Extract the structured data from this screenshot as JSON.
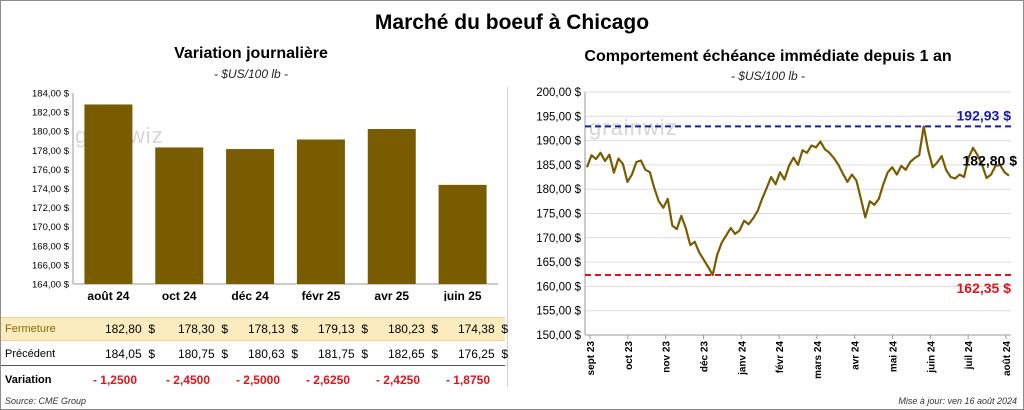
{
  "title": "Marché du boeuf à Chicago",
  "source": "Source: CME Group",
  "updated": "Mise à jour: ven 16 août 2024",
  "watermark": "grainwiz",
  "colors": {
    "bar": "#7a5c00",
    "line": "#7a5c00",
    "high_line": "#1a1aaa",
    "low_line": "#e0141e",
    "close_row_bg": "#fbecc0",
    "negative": "#e0141e"
  },
  "table": {
    "rows": [
      {
        "label": "Fermeture",
        "values": [
          "182,80  $",
          "178,30  $",
          "178,13  $",
          "179,13  $",
          "180,23  $",
          "174,38  $"
        ]
      },
      {
        "label": "Précédent",
        "values": [
          "184,05  $",
          "180,75  $",
          "180,63  $",
          "181,75  $",
          "182,65  $",
          "176,25  $"
        ]
      },
      {
        "label": "Variation",
        "values": [
          "- 1,2500",
          "- 2,4500",
          "- 2,5000",
          "- 2,6250",
          "- 2,4250",
          "- 1,8750"
        ]
      }
    ]
  },
  "chart_data": [
    {
      "type": "bar",
      "title": "Variation  journalière",
      "subtitle": "- $US/100 lb -",
      "categories": [
        "août 24",
        "oct 24",
        "déc 24",
        "févr 25",
        "avr 25",
        "juin 25"
      ],
      "values": [
        182.8,
        178.3,
        178.13,
        179.13,
        180.23,
        174.38
      ],
      "ylim": [
        164,
        184
      ],
      "yticks": [
        "164,00 $",
        "166,00 $",
        "168,00 $",
        "170,00 $",
        "172,00 $",
        "174,00 $",
        "176,00 $",
        "178,00 $",
        "180,00 $",
        "182,00 $",
        "184,00 $"
      ],
      "grid": false,
      "legend": "none"
    },
    {
      "type": "line",
      "title": "Comportement  échéance immédiate depuis 1 an",
      "subtitle": "- $US/100 lb -",
      "ylim": [
        150,
        200
      ],
      "yticks": [
        "150,00 $",
        "155,00 $",
        "160,00 $",
        "165,00 $",
        "170,00 $",
        "175,00 $",
        "180,00 $",
        "185,00 $",
        "190,00 $",
        "195,00 $",
        "200,00 $"
      ],
      "xtick_labels": [
        "sept 23",
        "oct 23",
        "nov 23",
        "déc 23",
        "janv 24",
        "févr 24",
        "mars 24",
        "avr 24",
        "mai 24",
        "juin 24",
        "juil 24",
        "août 24"
      ],
      "high": {
        "value": 192.93,
        "label": "192,93 $"
      },
      "low": {
        "value": 162.35,
        "label": "162,35 $"
      },
      "last": {
        "value": 182.8,
        "label": "182,80 $"
      },
      "series": [
        {
          "values": [
            184.5,
            187.0,
            186.2,
            187.5,
            185.8,
            187.1,
            183.4,
            186.3,
            185.2,
            181.5,
            183.0,
            185.6,
            185.9,
            184.0,
            183.5,
            180.2,
            177.5,
            176.2,
            178.0,
            172.5,
            171.8,
            174.5,
            172.0,
            168.5,
            169.2,
            167.0,
            165.5,
            164.0,
            162.35,
            166.5,
            169.0,
            170.5,
            172.0,
            170.8,
            171.5,
            173.5,
            172.8,
            174.0,
            175.5,
            178.0,
            180.2,
            182.5,
            181.0,
            183.5,
            182.0,
            184.8,
            186.5,
            185.0,
            188.0,
            187.5,
            189.0,
            188.6,
            189.8,
            188.2,
            187.5,
            186.4,
            185.0,
            183.2,
            181.5,
            183.0,
            181.8,
            178.0,
            174.2,
            177.5,
            176.8,
            178.0,
            181.0,
            183.5,
            184.5,
            183.0,
            184.8,
            184.0,
            185.6,
            186.4,
            187.0,
            192.93,
            188.0,
            184.5,
            185.5,
            186.8,
            184.0,
            182.5,
            182.2,
            183.0,
            182.5,
            186.5,
            188.5,
            187.0,
            185.0,
            182.3,
            183.0,
            184.8,
            185.0,
            183.5,
            182.8
          ]
        }
      ],
      "grid": true,
      "legend": "none"
    }
  ]
}
